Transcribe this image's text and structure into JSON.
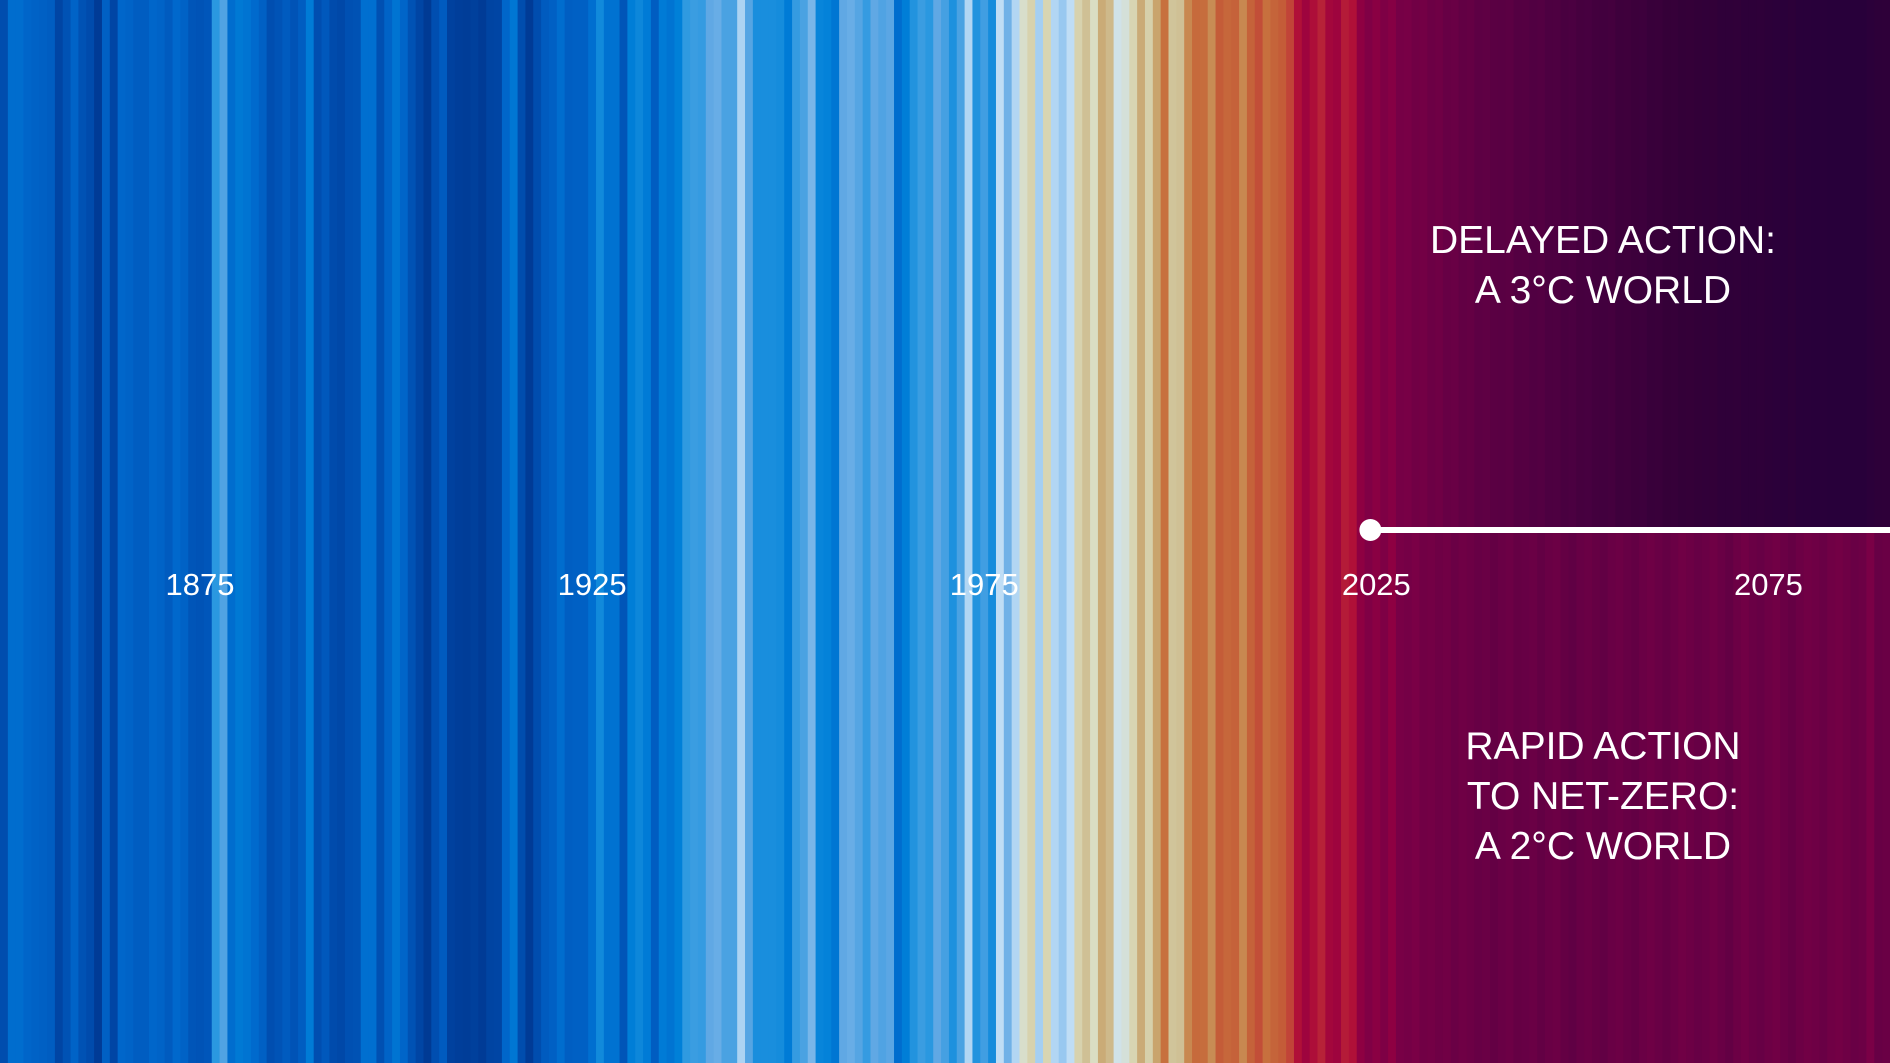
{
  "chart_data": {
    "type": "heatmap",
    "title": "",
    "xlabel": "",
    "ylabel": "",
    "x_start_year": 1850,
    "x_end_year": 2090,
    "x_ticks": [
      "1875",
      "1925",
      "1975",
      "2025",
      "2075"
    ],
    "tick_years": [
      1875,
      1925,
      1975,
      2025,
      2075
    ],
    "units": "temperature anomaly (°C, estimated from stripe colour)",
    "historical": [
      -0.42,
      -0.23,
      -0.23,
      -0.27,
      -0.29,
      -0.3,
      -0.32,
      -0.47,
      -0.39,
      -0.28,
      -0.39,
      -0.43,
      -0.54,
      -0.3,
      -0.47,
      -0.26,
      -0.28,
      -0.32,
      -0.32,
      -0.26,
      -0.28,
      -0.33,
      -0.25,
      -0.29,
      -0.37,
      -0.38,
      -0.36,
      -0.05,
      0.02,
      -0.23,
      -0.18,
      -0.2,
      -0.24,
      -0.3,
      -0.41,
      -0.38,
      -0.33,
      -0.38,
      -0.32,
      -0.17,
      -0.41,
      -0.35,
      -0.43,
      -0.45,
      -0.4,
      -0.39,
      -0.22,
      -0.22,
      -0.4,
      -0.28,
      -0.2,
      -0.27,
      -0.39,
      -0.47,
      -0.57,
      -0.41,
      -0.33,
      -0.5,
      -0.52,
      -0.53,
      -0.51,
      -0.54,
      -0.48,
      -0.47,
      -0.26,
      -0.19,
      -0.42,
      -0.54,
      -0.42,
      -0.33,
      -0.3,
      -0.23,
      -0.31,
      -0.3,
      -0.3,
      -0.22,
      -0.11,
      -0.21,
      -0.21,
      -0.37,
      -0.16,
      -0.12,
      -0.17,
      -0.32,
      -0.17,
      -0.2,
      -0.15,
      -0.04,
      -0.02,
      -0.03,
      0.05,
      0.06,
      0.01,
      0.01,
      0.15,
      0.03,
      -0.09,
      -0.09,
      -0.09,
      -0.1,
      -0.17,
      -0.03,
      0.01,
      0.08,
      -0.13,
      -0.14,
      -0.19,
      0.05,
      0.06,
      0.03,
      -0.03,
      0.05,
      0.02,
      0.04,
      -0.23,
      -0.16,
      -0.07,
      -0.02,
      -0.05,
      0.05,
      0.0,
      -0.08,
      0.01,
      0.16,
      -0.07,
      -0.01,
      -0.1,
      0.18,
      0.07,
      0.16,
      0.26,
      0.32,
      0.14,
      0.31,
      0.16,
      0.12,
      0.18,
      0.32,
      0.39,
      0.27,
      0.45,
      0.41,
      0.22,
      0.24,
      0.31,
      0.45,
      0.33,
      0.47,
      0.61,
      0.38,
      0.39,
      0.54,
      0.63,
      0.62,
      0.53,
      0.68,
      0.64,
      0.66,
      0.54,
      0.66,
      0.72,
      0.61,
      0.65,
      0.68,
      0.75,
      0.9,
      1.01,
      0.92,
      0.85,
      0.98,
      1.01,
      0.87,
      0.9,
      1.1,
      1.17
    ],
    "series": [
      {
        "name": "DELAYED ACTION: A 3°C WORLD",
        "position": "top",
        "values": [
          1.12,
          1.18,
          1.14,
          1.25,
          1.22,
          1.3,
          1.28,
          1.36,
          1.33,
          1.42,
          1.4,
          1.48,
          1.45,
          1.55,
          1.52,
          1.6,
          1.62,
          1.58,
          1.7,
          1.68,
          1.75,
          1.72,
          1.82,
          1.8,
          1.88,
          1.85,
          1.95,
          1.92,
          2.0,
          2.02,
          1.98,
          2.1,
          2.08,
          2.15,
          2.12,
          2.22,
          2.2,
          2.28,
          2.25,
          2.33,
          2.3,
          2.38,
          2.4,
          2.36,
          2.45,
          2.48,
          2.44,
          2.52,
          2.55,
          2.5,
          2.58,
          2.6,
          2.62,
          2.58,
          2.66,
          2.68,
          2.7,
          2.66,
          2.72,
          2.74,
          2.75,
          2.7,
          2.76,
          2.6,
          2.55,
          2.5
        ]
      },
      {
        "name": "RAPID ACTION TO NET-ZERO: A 2°C WORLD",
        "position": "bottom",
        "values": [
          1.12,
          1.18,
          1.1,
          1.22,
          1.26,
          1.2,
          1.3,
          1.28,
          1.34,
          1.3,
          1.38,
          1.33,
          1.36,
          1.42,
          1.38,
          1.45,
          1.4,
          1.36,
          1.44,
          1.42,
          1.38,
          1.46,
          1.4,
          1.36,
          1.45,
          1.5,
          1.42,
          1.38,
          1.44,
          1.48,
          1.4,
          1.36,
          1.42,
          1.46,
          1.38,
          1.34,
          1.4,
          1.45,
          1.38,
          1.32,
          1.36,
          1.42,
          1.38,
          1.33,
          1.4,
          1.46,
          1.36,
          1.3,
          1.38,
          1.42,
          1.35,
          1.3,
          1.38,
          1.44,
          1.36,
          1.3,
          1.34,
          1.4,
          1.32,
          1.28,
          1.34,
          1.4,
          1.36,
          1.2,
          1.42,
          1.38
        ]
      }
    ],
    "colormap": [
      [
        -0.55,
        "#003a94"
      ],
      [
        -0.45,
        "#0048a8"
      ],
      [
        -0.35,
        "#0058bc"
      ],
      [
        -0.25,
        "#0068cc"
      ],
      [
        -0.15,
        "#0080d8"
      ],
      [
        -0.05,
        "#2a98e0"
      ],
      [
        0.05,
        "#60a8e4"
      ],
      [
        0.12,
        "#98c8f0"
      ],
      [
        0.2,
        "#cce4f6"
      ],
      [
        0.28,
        "#dcdcbc"
      ],
      [
        0.38,
        "#d0c49a"
      ],
      [
        0.48,
        "#c8a068"
      ],
      [
        0.58,
        "#c87840"
      ],
      [
        0.68,
        "#c45c38"
      ],
      [
        0.78,
        "#c03a38"
      ],
      [
        0.9,
        "#b01038"
      ],
      [
        1.05,
        "#980040"
      ],
      [
        1.2,
        "#7a0046"
      ],
      [
        1.5,
        "#600044"
      ],
      [
        1.9,
        "#480040"
      ],
      [
        2.3,
        "#340038"
      ],
      [
        2.7,
        "#28003a"
      ]
    ],
    "scenario_start_year": 2025
  },
  "labels": {
    "top": [
      "DELAYED ACTION:",
      "A 3°C WORLD"
    ],
    "bottom": [
      "RAPID ACTION",
      "TO NET-ZERO:",
      "A 2°C WORLD"
    ]
  },
  "colors": {
    "text": "#ffffff",
    "marker": "#ffffff"
  }
}
